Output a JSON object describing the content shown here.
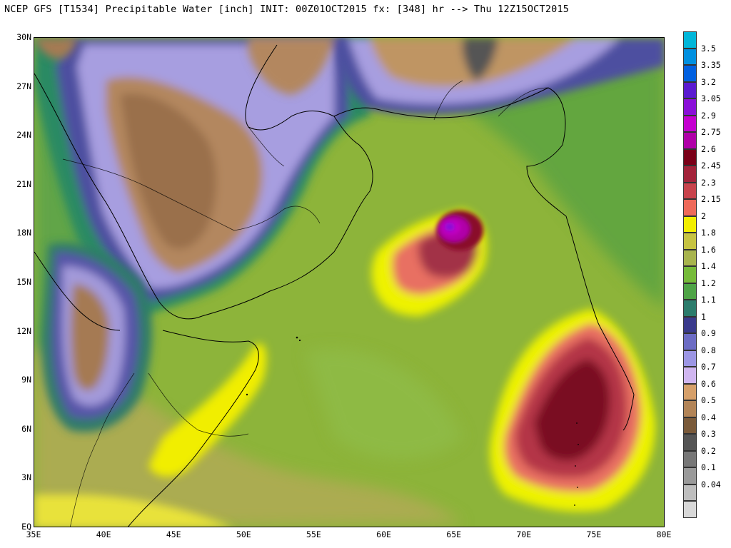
{
  "header": {
    "title": "NCEP GFS [T1534] Precipitable Water [inch] INIT: 00Z01OCT2015 fx: [348] hr --> Thu 12Z15OCT2015"
  },
  "map": {
    "lat_labels": [
      "30N",
      "27N",
      "24N",
      "21N",
      "18N",
      "15N",
      "12N",
      "9N",
      "6N",
      "3N",
      "EQ"
    ],
    "lon_labels": [
      "35E",
      "40E",
      "45E",
      "50E",
      "55E",
      "60E",
      "65E",
      "70E",
      "75E",
      "80E"
    ],
    "regions": [
      {
        "name": "background-moisture-field",
        "pw": 1.3,
        "color": "#8db43a"
      },
      {
        "name": "arabian-peninsula-dry-air",
        "pw": 0.7,
        "color": "#a79ee0"
      },
      {
        "name": "rub-al-khali-dry-core",
        "pw": 0.5,
        "color": "#b3875f"
      },
      {
        "name": "ethiopian-highlands-dry-core",
        "pw": 0.5,
        "color": "#a57a52"
      },
      {
        "name": "iran-plateau-dry-air",
        "pw": 0.5,
        "color": "#bf9563"
      },
      {
        "name": "tropical-cyclone-moisture-core",
        "pw": 2.9,
        "color": "#c200c2"
      },
      {
        "name": "india-west-coast-moist-plume",
        "pw": 2.3,
        "color": "#a52238"
      },
      {
        "name": "somalia-coastal-moist-band",
        "pw": 1.9,
        "color": "#f1ee00"
      },
      {
        "name": "equatorial-moist-band",
        "pw": 1.8,
        "color": "#e8e23a"
      }
    ]
  },
  "colorbar": {
    "entries": [
      {
        "label": "3.5",
        "color": "#00b6d9"
      },
      {
        "label": "3.35",
        "color": "#0090e0"
      },
      {
        "label": "3.2",
        "color": "#0060e0"
      },
      {
        "label": "3.05",
        "color": "#5a1ad0"
      },
      {
        "label": "2.9",
        "color": "#8a10d8"
      },
      {
        "label": "2.75",
        "color": "#c400d0"
      },
      {
        "label": "2.6",
        "color": "#b000a8"
      },
      {
        "label": "2.45",
        "color": "#7a0018"
      },
      {
        "label": "2.3",
        "color": "#a3233a"
      },
      {
        "label": "2.15",
        "color": "#c8434c"
      },
      {
        "label": "2",
        "color": "#ee6a5a"
      },
      {
        "label": "1.8",
        "color": "#f2ee00"
      },
      {
        "label": "1.6",
        "color": "#c6c342"
      },
      {
        "label": "1.4",
        "color": "#a8b44e"
      },
      {
        "label": "1.2",
        "color": "#76bb3a"
      },
      {
        "label": "1.1",
        "color": "#4fa447"
      },
      {
        "label": "1",
        "color": "#2c7c6c"
      },
      {
        "label": "0.9",
        "color": "#3a3a8c"
      },
      {
        "label": "0.8",
        "color": "#6c6cc4"
      },
      {
        "label": "0.7",
        "color": "#9c96e4"
      },
      {
        "label": "0.6",
        "color": "#d0b6f0"
      },
      {
        "label": "0.5",
        "color": "#d6a06a"
      },
      {
        "label": "0.4",
        "color": "#b28457"
      },
      {
        "label": "0.3",
        "color": "#7a5a3a"
      },
      {
        "label": "0.2",
        "color": "#555555"
      },
      {
        "label": "0.1",
        "color": "#777777"
      },
      {
        "label": "0.04",
        "color": "#9a9a9a"
      },
      {
        "label": "",
        "color": "#bebebe"
      },
      {
        "label": "",
        "color": "#d8d8d8"
      }
    ]
  }
}
